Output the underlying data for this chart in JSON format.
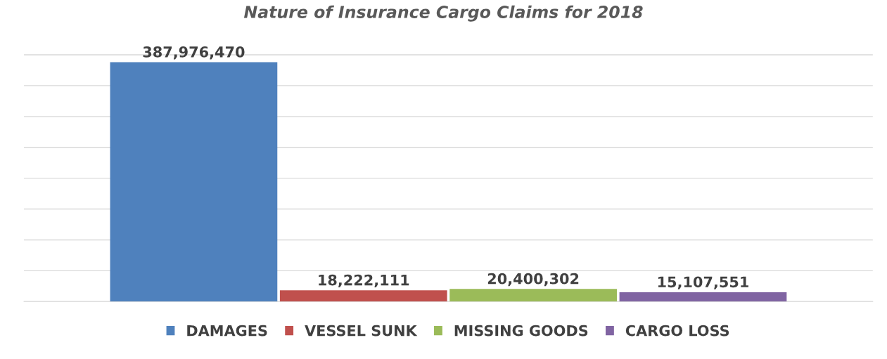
{
  "chart_data": {
    "type": "bar",
    "title": "Nature of Insurance Cargo Claims for 2018",
    "categories": [
      null
    ],
    "series": [
      {
        "name": "DAMAGES",
        "color": "#4f81bd",
        "values": [
          387976470
        ],
        "value_labels": [
          "387,976,470"
        ]
      },
      {
        "name": "VESSEL SUNK",
        "color": "#c0504d",
        "values": [
          18222111
        ],
        "value_labels": [
          "18,222,111"
        ]
      },
      {
        "name": "MISSING GOODS",
        "color": "#9bbb59",
        "values": [
          20400302
        ],
        "value_labels": [
          "20,400,302"
        ]
      },
      {
        "name": "CARGO LOSS",
        "color": "#8064a2",
        "values": [
          15107551
        ],
        "value_labels": [
          "15,107,551"
        ]
      }
    ],
    "grid": "y",
    "legend": "bottom",
    "tick_labels": false
  }
}
